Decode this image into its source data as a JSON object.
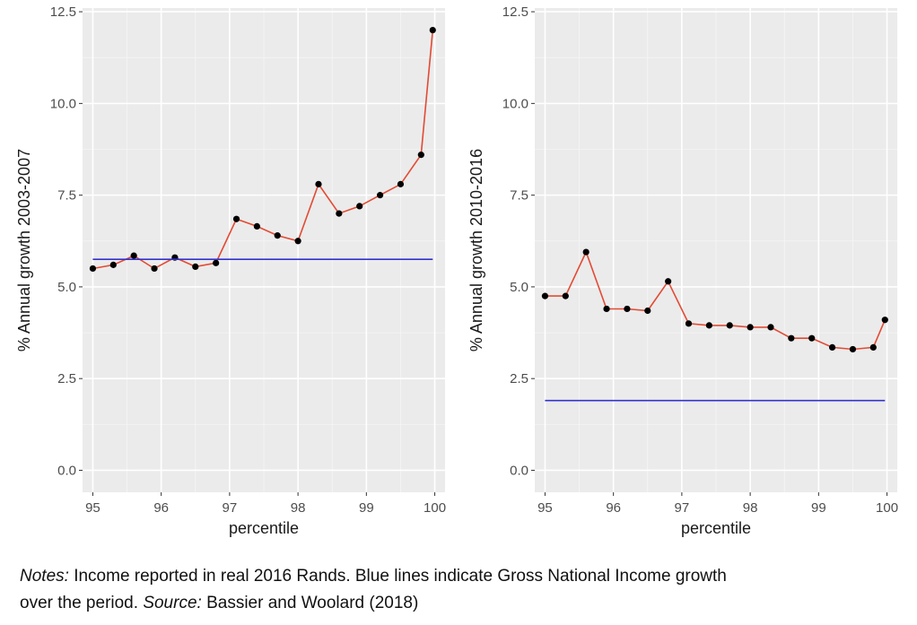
{
  "chart_data": [
    {
      "type": "line",
      "xlabel": "percentile",
      "ylabel": "% Annual growth 2003-2007",
      "xlim": [
        94.85,
        100.15
      ],
      "ylim": [
        -0.6,
        12.6
      ],
      "x_ticks": [
        95,
        96,
        97,
        98,
        99,
        100
      ],
      "y_ticks": [
        0.0,
        2.5,
        5.0,
        7.5,
        10.0,
        12.5
      ],
      "x_tick_labels": [
        "95",
        "96",
        "97",
        "98",
        "99",
        "100"
      ],
      "y_tick_labels": [
        "0.0",
        "2.5",
        "5.0",
        "7.5",
        "10.0",
        "12.5"
      ],
      "grid": true,
      "series": [
        {
          "color": "#e34a33",
          "points": true,
          "x": [
            95.0,
            95.3,
            95.6,
            95.9,
            96.2,
            96.5,
            96.8,
            97.1,
            97.4,
            97.7,
            98.0,
            98.3,
            98.6,
            98.9,
            99.2,
            99.5,
            99.8,
            99.97
          ],
          "y": [
            5.5,
            5.6,
            5.85,
            5.5,
            5.8,
            5.55,
            5.65,
            6.85,
            6.65,
            6.4,
            6.25,
            7.8,
            7.0,
            7.2,
            7.5,
            7.8,
            8.6,
            12.0
          ]
        },
        {
          "color": "#3333cc",
          "points": false,
          "x": [
            95.0,
            99.97
          ],
          "y": [
            5.75,
            5.75
          ]
        }
      ]
    },
    {
      "type": "line",
      "xlabel": "percentile",
      "ylabel": "% Annual growth 2010-2016",
      "xlim": [
        94.85,
        100.15
      ],
      "ylim": [
        -0.6,
        12.6
      ],
      "x_ticks": [
        95,
        96,
        97,
        98,
        99,
        100
      ],
      "y_ticks": [
        0.0,
        2.5,
        5.0,
        7.5,
        10.0,
        12.5
      ],
      "x_tick_labels": [
        "95",
        "96",
        "97",
        "98",
        "99",
        "100"
      ],
      "y_tick_labels": [
        "0.0",
        "2.5",
        "5.0",
        "7.5",
        "10.0",
        "12.5"
      ],
      "grid": true,
      "series": [
        {
          "color": "#e34a33",
          "points": true,
          "x": [
            95.0,
            95.3,
            95.6,
            95.9,
            96.2,
            96.5,
            96.8,
            97.1,
            97.4,
            97.7,
            98.0,
            98.3,
            98.6,
            98.9,
            99.2,
            99.5,
            99.8,
            99.97
          ],
          "y": [
            4.75,
            4.75,
            5.95,
            4.4,
            4.4,
            4.35,
            5.15,
            4.0,
            3.95,
            3.95,
            3.9,
            3.9,
            3.6,
            3.6,
            3.35,
            3.3,
            3.35,
            4.1
          ]
        },
        {
          "color": "#3333cc",
          "points": false,
          "x": [
            95.0,
            99.97
          ],
          "y": [
            1.9,
            1.9
          ]
        }
      ]
    }
  ],
  "notes": {
    "line1_label": "Notes:",
    "line1_text": " Income reported in real 2016 Rands. Blue lines indicate Gross National Income growth",
    "line2_text": "over the period. ",
    "line2_label": "Source:",
    "line2_source": " Bassier and Woolard (2018)"
  },
  "colors": {
    "panel_background": "#ebebeb",
    "grid_major": "#ffffff",
    "grid_minor": "#f5f5f5",
    "tick_text": "#4d4d4d",
    "axis_title": "#1a1a1a",
    "point": "#000000"
  }
}
